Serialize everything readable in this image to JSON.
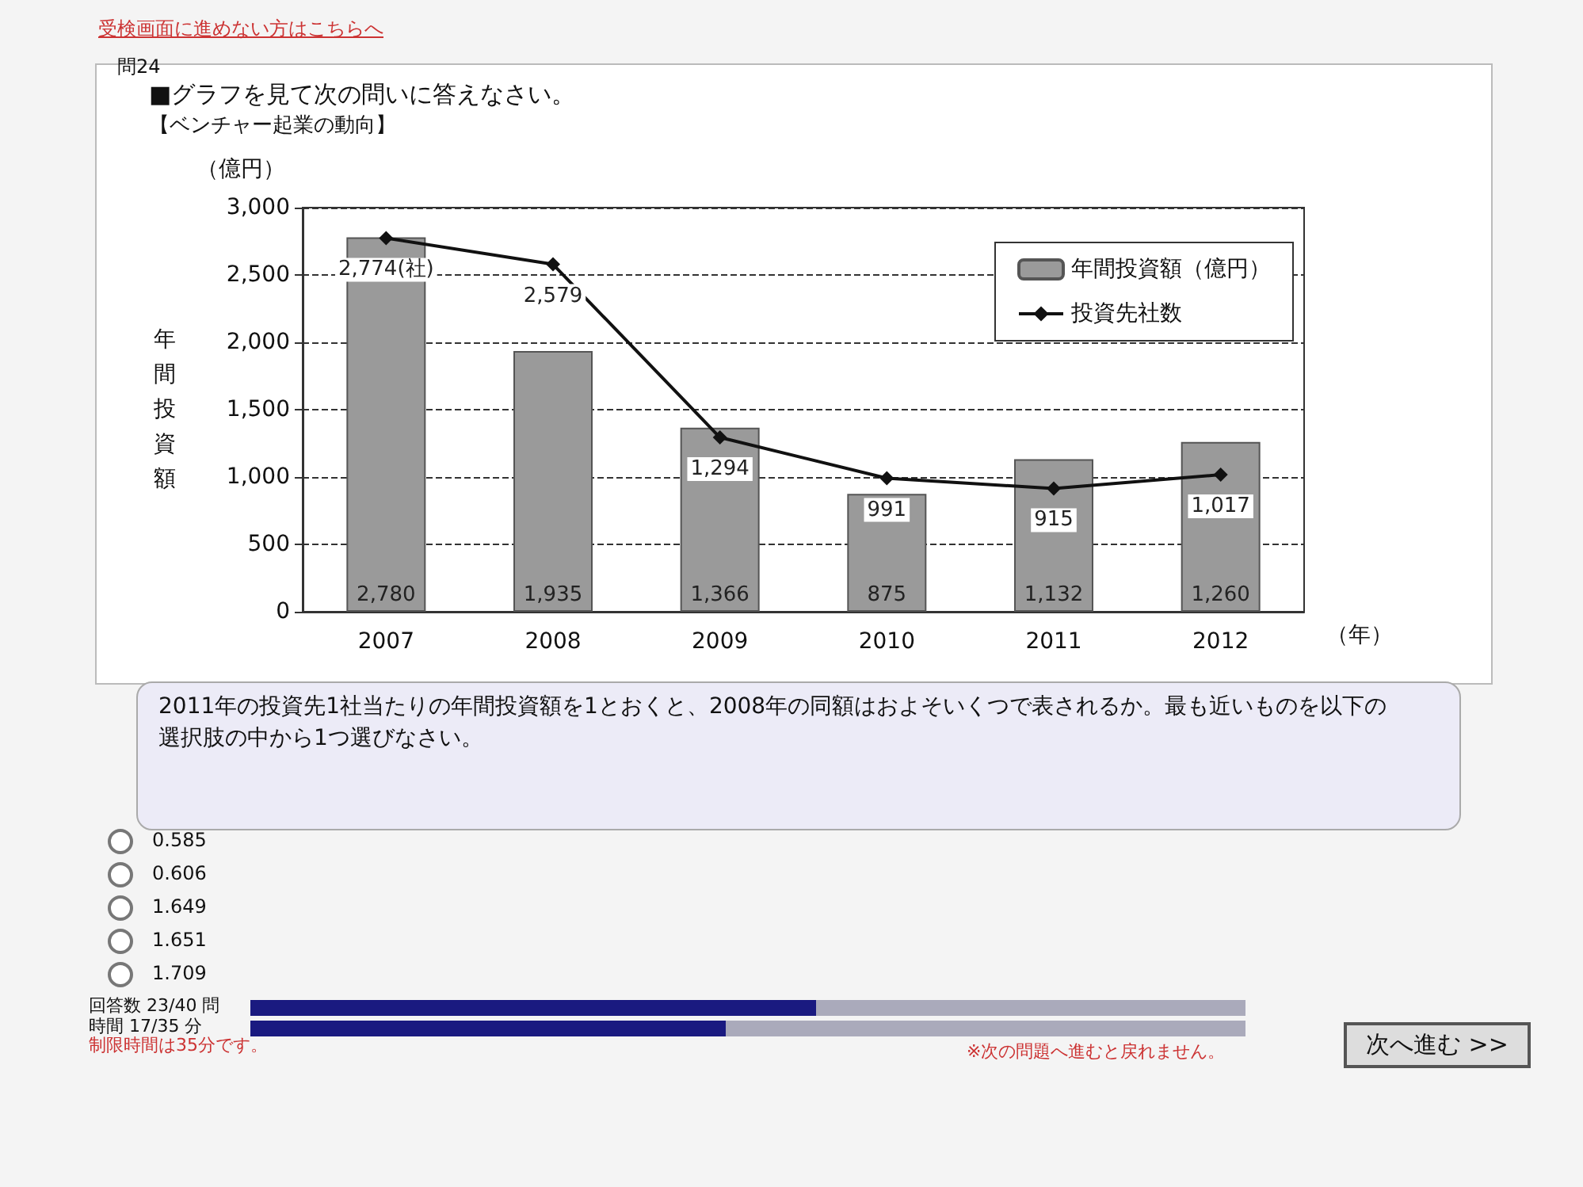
{
  "chart_data": {
    "type": "bar",
    "title": "■グラフを見て次の問いに答えなさい。",
    "subtitle": "【ベンチャー起業の動向】",
    "ylabel": "年間投資額",
    "xlabel": "（年）",
    "categories": [
      "2007",
      "2008",
      "2009",
      "2010",
      "2011",
      "2012"
    ],
    "series": [
      {
        "name": "年間投資額（億円）",
        "color": "#9a9a9a",
        "values": [
          2780,
          1935,
          1366,
          875,
          1132,
          1260
        ],
        "value_labels": [
          "2,780",
          "1,935",
          "1,366",
          "875",
          "1,132",
          "1,260"
        ]
      },
      {
        "name": "投資先社数",
        "type": "line",
        "color": "#111111",
        "marker": "diamond",
        "line_style": "solid",
        "values": [
          2774,
          2579,
          1294,
          991,
          915,
          1017
        ],
        "value_labels": [
          "2,774(社)",
          "2,579",
          "1,294",
          "991",
          "915",
          "1,017"
        ]
      }
    ],
    "ylim": [
      0,
      3000
    ],
    "yticks": [
      0,
      500,
      {
        "value": 1000,
        "label": "1,000"
      },
      {
        "value": 1500,
        "label": "1,500"
      },
      {
        "value": 2000,
        "label": "2,000"
      },
      {
        "value": 2500,
        "label": "2,500"
      },
      {
        "value": 3000,
        "label": "3,000"
      }
    ],
    "grid": "y",
    "legend": "top right",
    "annotations": [
      "受検画面に進めない方はこちらへ",
      "問24",
      "（億円）",
      "2011年の投資先1社当たりの年間投資額を1とおくと、2008年の同額はおよそいくつで表されるか。最も近いものを以下の選択肢の中から1つ選びなさい。",
      "0.585",
      "0.606",
      "1.649",
      "1.651",
      "1.709",
      "回答数 23/40 問",
      "時間 17/35 分",
      "制限時間は35分です。",
      "※次の問題へ進むと戻れません。",
      "次へ進む >>"
    ]
  }
}
